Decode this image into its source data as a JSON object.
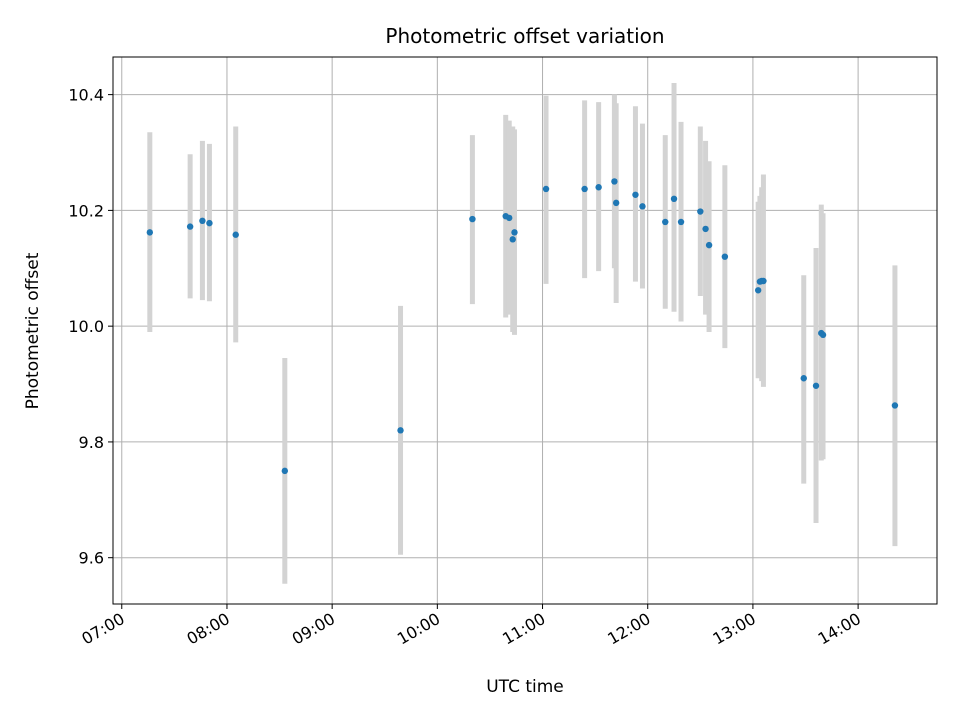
{
  "chart_data": {
    "type": "scatter",
    "title": "Photometric offset variation",
    "xlabel": "UTC time",
    "ylabel": "Photometric offset",
    "x_unit": "time",
    "xlim": [
      "06:55",
      "14:45"
    ],
    "ylim": [
      9.52,
      10.465
    ],
    "grid": true,
    "x_ticks": [
      "07:00",
      "08:00",
      "09:00",
      "10:00",
      "11:00",
      "12:00",
      "13:00",
      "14:00"
    ],
    "y_ticks": [
      9.6,
      9.8,
      10.0,
      10.2,
      10.4
    ],
    "y_tick_labels": [
      "9.6",
      "9.8",
      "10.0",
      "10.2",
      "10.4"
    ],
    "colors": {
      "point": "#1f77b4",
      "errorbar": "#d3d3d3",
      "grid": "#b0b0b0"
    },
    "series": [
      {
        "points": [
          {
            "x": "07:16",
            "y": 10.162,
            "ymin": 9.99,
            "ymax": 10.335
          },
          {
            "x": "07:39",
            "y": 10.172,
            "ymin": 10.048,
            "ymax": 10.297
          },
          {
            "x": "07:46",
            "y": 10.182,
            "ymin": 10.045,
            "ymax": 10.32
          },
          {
            "x": "07:50",
            "y": 10.178,
            "ymin": 10.043,
            "ymax": 10.315
          },
          {
            "x": "08:05",
            "y": 10.158,
            "ymin": 9.972,
            "ymax": 10.345
          },
          {
            "x": "08:33",
            "y": 9.75,
            "ymin": 9.555,
            "ymax": 9.945
          },
          {
            "x": "09:39",
            "y": 9.82,
            "ymin": 9.605,
            "ymax": 10.035
          },
          {
            "x": "10:20",
            "y": 10.185,
            "ymin": 10.038,
            "ymax": 10.33
          },
          {
            "x": "10:39",
            "y": 10.19,
            "ymin": 10.015,
            "ymax": 10.365
          },
          {
            "x": "10:41",
            "y": 10.187,
            "ymin": 10.02,
            "ymax": 10.355
          },
          {
            "x": "10:43",
            "y": 10.15,
            "ymin": 9.99,
            "ymax": 10.345
          },
          {
            "x": "10:44",
            "y": 10.162,
            "ymin": 9.985,
            "ymax": 10.34
          },
          {
            "x": "11:02",
            "y": 10.237,
            "ymin": 10.073,
            "ymax": 10.398
          },
          {
            "x": "11:24",
            "y": 10.237,
            "ymin": 10.083,
            "ymax": 10.39
          },
          {
            "x": "11:32",
            "y": 10.24,
            "ymin": 10.095,
            "ymax": 10.387
          },
          {
            "x": "11:41",
            "y": 10.25,
            "ymin": 10.1,
            "ymax": 10.4
          },
          {
            "x": "11:42",
            "y": 10.213,
            "ymin": 10.04,
            "ymax": 10.385
          },
          {
            "x": "11:53",
            "y": 10.227,
            "ymin": 10.077,
            "ymax": 10.38
          },
          {
            "x": "11:57",
            "y": 10.207,
            "ymin": 10.065,
            "ymax": 10.35
          },
          {
            "x": "12:10",
            "y": 10.18,
            "ymin": 10.03,
            "ymax": 10.33
          },
          {
            "x": "12:15",
            "y": 10.22,
            "ymin": 10.025,
            "ymax": 10.42
          },
          {
            "x": "12:19",
            "y": 10.18,
            "ymin": 10.008,
            "ymax": 10.353
          },
          {
            "x": "12:30",
            "y": 10.198,
            "ymin": 10.052,
            "ymax": 10.345
          },
          {
            "x": "12:33",
            "y": 10.168,
            "ymin": 10.02,
            "ymax": 10.32
          },
          {
            "x": "12:35",
            "y": 10.14,
            "ymin": 9.99,
            "ymax": 10.285
          },
          {
            "x": "12:44",
            "y": 10.12,
            "ymin": 9.962,
            "ymax": 10.278
          },
          {
            "x": "13:03",
            "y": 10.062,
            "ymin": 9.91,
            "ymax": 10.215
          },
          {
            "x": "13:04",
            "y": 10.077,
            "ymin": 9.92,
            "ymax": 10.225
          },
          {
            "x": "13:05",
            "y": 10.078,
            "ymin": 9.905,
            "ymax": 10.24
          },
          {
            "x": "13:06",
            "y": 10.078,
            "ymin": 9.895,
            "ymax": 10.262
          },
          {
            "x": "13:29",
            "y": 9.91,
            "ymin": 9.728,
            "ymax": 10.088
          },
          {
            "x": "13:36",
            "y": 9.897,
            "ymin": 9.66,
            "ymax": 10.135
          },
          {
            "x": "13:39",
            "y": 9.988,
            "ymin": 9.768,
            "ymax": 10.21
          },
          {
            "x": "13:40",
            "y": 9.985,
            "ymin": 9.77,
            "ymax": 10.195
          },
          {
            "x": "14:21",
            "y": 9.863,
            "ymin": 9.62,
            "ymax": 10.105
          }
        ]
      }
    ]
  }
}
